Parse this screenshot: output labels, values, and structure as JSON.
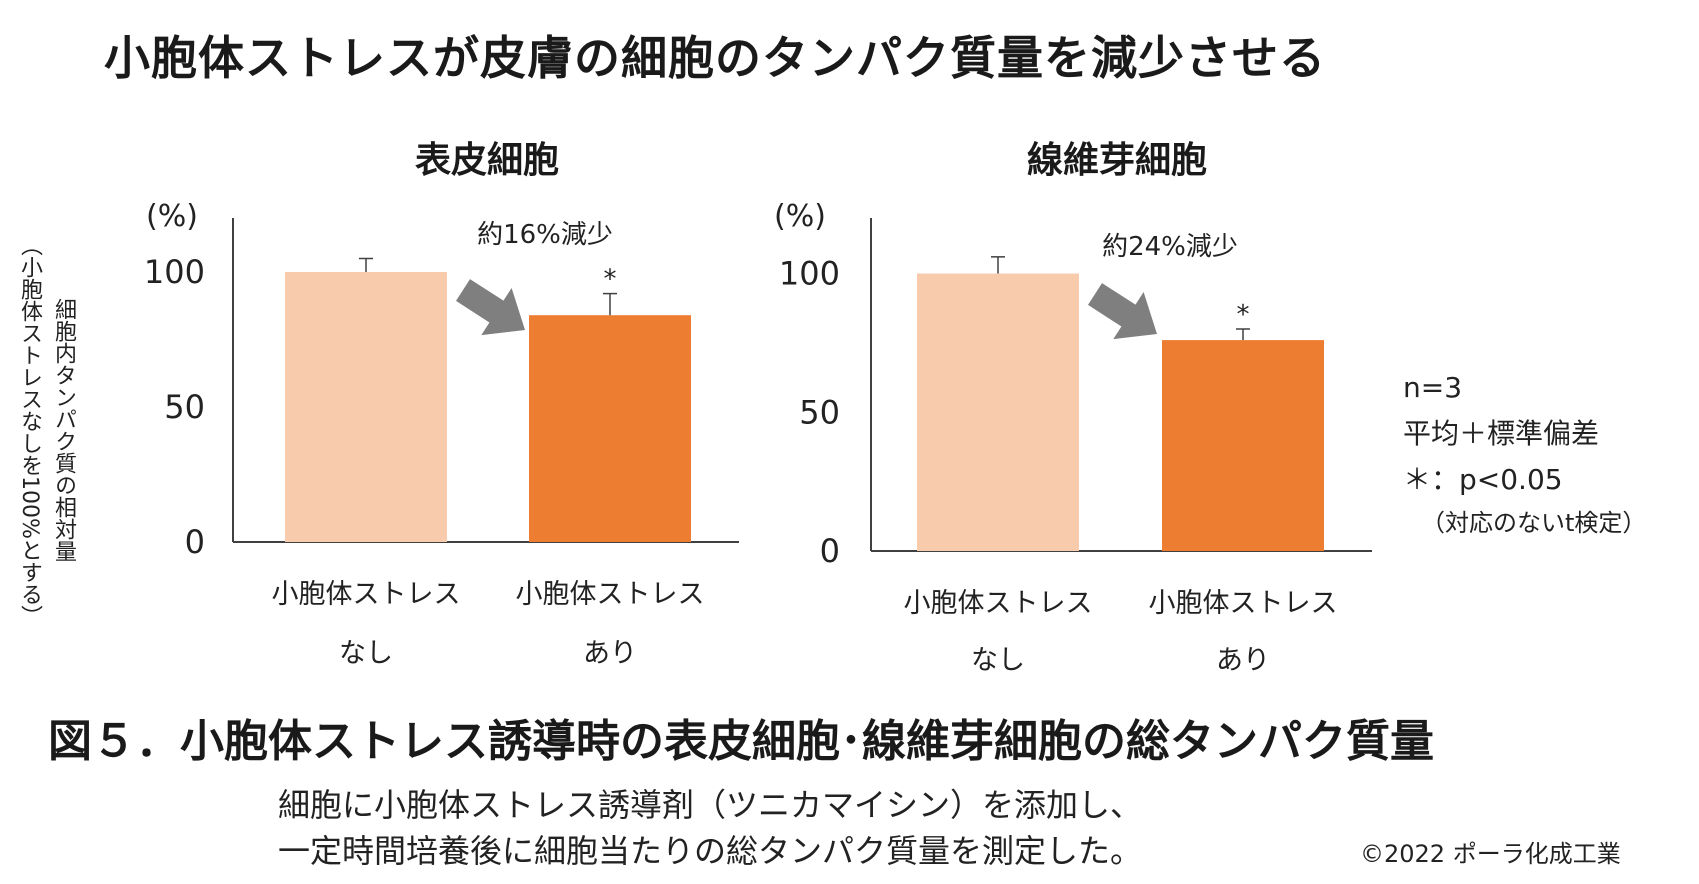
{
  "page": {
    "title": "小胞体ストレスが皮膚の細胞のタンパク質量を減少させる",
    "ylabel_line1": "細胞内タンパク質の相対量",
    "ylabel_line2": "（小胞体ストレスなしを100%とする）",
    "caption": "図５．小胞体ストレス誘導時の表皮細胞･線維芽細胞の総タンパク質量",
    "description_line1": "細胞に小胞体ストレス誘導剤（ツニカマイシン）を添加し、",
    "description_line2": "一定時間培養後に細胞当たりの総タンパク質量を測定した。",
    "copyright": "©2022 ポーラ化成工業"
  },
  "notes": {
    "n": "n=3",
    "stat": "平均＋標準偏差",
    "sig": "＊：p<0.05",
    "test": "（対応のないt検定）"
  },
  "colors": {
    "control": "#F8CBAD",
    "stress": "#ED7D31",
    "arrow": "#7F7F7F",
    "axis": "#404040"
  },
  "chart_data": [
    {
      "type": "bar",
      "title": "表皮細胞",
      "unit": "(%)",
      "categories": [
        [
          "小胞体ストレス",
          "なし"
        ],
        [
          "小胞体ストレス",
          "あり"
        ]
      ],
      "values": [
        100,
        84
      ],
      "errors": [
        5,
        8
      ],
      "significance": [
        "",
        "*"
      ],
      "annotation": "約16%減少",
      "ylim": [
        0,
        120
      ],
      "yticks": [
        0,
        50,
        100
      ]
    },
    {
      "type": "bar",
      "title": "線維芽細胞",
      "unit": "(%)",
      "categories": [
        [
          "小胞体ストレス",
          "なし"
        ],
        [
          "小胞体ストレス",
          "あり"
        ]
      ],
      "values": [
        100,
        76
      ],
      "errors": [
        6,
        4
      ],
      "significance": [
        "",
        "*"
      ],
      "annotation": "約24%減少",
      "ylim": [
        0,
        120
      ],
      "yticks": [
        0,
        50,
        100
      ]
    }
  ]
}
